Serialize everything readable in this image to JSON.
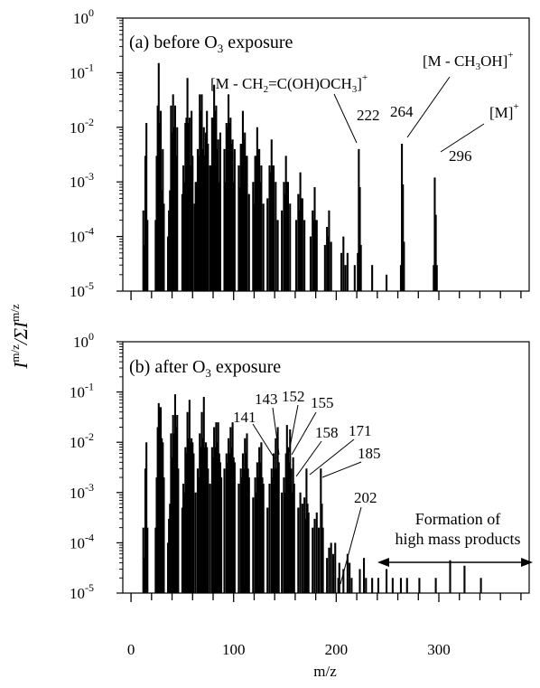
{
  "figure": {
    "ylabel_main": "I",
    "ylabel_sup1": "m/z",
    "ylabel_mid": "/ΣI",
    "ylabel_sup2": "m/z",
    "xlabel": "m/z",
    "x_ticks": [
      "0",
      "100",
      "200",
      "300"
    ],
    "y_ticks": [
      {
        "base": "10",
        "exp": "0"
      },
      {
        "base": "10",
        "exp": "-1"
      },
      {
        "base": "10",
        "exp": "-2"
      },
      {
        "base": "10",
        "exp": "-3"
      },
      {
        "base": "10",
        "exp": "-4"
      },
      {
        "base": "10",
        "exp": "-5"
      }
    ]
  },
  "chart_data": [
    {
      "type": "bar",
      "panel": "a",
      "title": "(a) before O3 exposure",
      "y_scale": "log",
      "ylim": [
        1e-05,
        1
      ],
      "xlim": [
        -8,
        388
      ],
      "peaks": [
        [
          12,
          0.0003
        ],
        [
          13,
          7e-05
        ],
        [
          14,
          0.003
        ],
        [
          15,
          0.012
        ],
        [
          16,
          0.0002
        ],
        [
          24,
          0.0002
        ],
        [
          25,
          0.003
        ],
        [
          26,
          0.025
        ],
        [
          27,
          0.15
        ],
        [
          28,
          0.012
        ],
        [
          29,
          0.02
        ],
        [
          30,
          0.0007
        ],
        [
          31,
          0.004
        ],
        [
          32,
          0.0004
        ],
        [
          36,
          0.0001
        ],
        [
          37,
          0.0003
        ],
        [
          38,
          0.0007
        ],
        [
          39,
          0.025
        ],
        [
          40,
          0.008
        ],
        [
          41,
          0.04
        ],
        [
          42,
          0.01
        ],
        [
          43,
          0.025
        ],
        [
          44,
          0.003
        ],
        [
          45,
          0.01
        ],
        [
          50,
          0.0006
        ],
        [
          51,
          0.002
        ],
        [
          52,
          0.001
        ],
        [
          53,
          0.012
        ],
        [
          54,
          0.015
        ],
        [
          55,
          0.08
        ],
        [
          56,
          0.012
        ],
        [
          57,
          0.015
        ],
        [
          58,
          0.002
        ],
        [
          59,
          0.02
        ],
        [
          60,
          0.003
        ],
        [
          62,
          0.0004
        ],
        [
          63,
          0.001
        ],
        [
          64,
          0.001
        ],
        [
          65,
          0.004
        ],
        [
          66,
          0.003
        ],
        [
          67,
          0.04
        ],
        [
          68,
          0.02
        ],
        [
          69,
          0.04
        ],
        [
          70,
          0.004
        ],
        [
          71,
          0.01
        ],
        [
          72,
          0.003
        ],
        [
          73,
          0.008
        ],
        [
          74,
          0.02
        ],
        [
          75,
          0.005
        ],
        [
          77,
          0.002
        ],
        [
          78,
          0.002
        ],
        [
          79,
          0.015
        ],
        [
          80,
          0.015
        ],
        [
          81,
          0.06
        ],
        [
          82,
          0.02
        ],
        [
          83,
          0.025
        ],
        [
          84,
          0.004
        ],
        [
          85,
          0.006
        ],
        [
          86,
          0.001
        ],
        [
          87,
          0.008
        ],
        [
          91,
          0.004
        ],
        [
          92,
          0.001
        ],
        [
          93,
          0.012
        ],
        [
          94,
          0.01
        ],
        [
          95,
          0.04
        ],
        [
          96,
          0.012
        ],
        [
          97,
          0.015
        ],
        [
          98,
          0.005
        ],
        [
          99,
          0.006
        ],
        [
          100,
          0.001
        ],
        [
          101,
          0.004
        ],
        [
          105,
          0.002
        ],
        [
          106,
          0.0008
        ],
        [
          107,
          0.005
        ],
        [
          108,
          0.005
        ],
        [
          109,
          0.02
        ],
        [
          110,
          0.006
        ],
        [
          111,
          0.008
        ],
        [
          112,
          0.003
        ],
        [
          113,
          0.003
        ],
        [
          115,
          0.0006
        ],
        [
          119,
          0.001
        ],
        [
          120,
          0.0004
        ],
        [
          121,
          0.003
        ],
        [
          122,
          0.003
        ],
        [
          123,
          0.01
        ],
        [
          124,
          0.004
        ],
        [
          125,
          0.004
        ],
        [
          126,
          0.001
        ],
        [
          127,
          0.002
        ],
        [
          129,
          0.0004
        ],
        [
          133,
          0.0005
        ],
        [
          135,
          0.002
        ],
        [
          136,
          0.0015
        ],
        [
          137,
          0.006
        ],
        [
          138,
          0.002
        ],
        [
          139,
          0.002
        ],
        [
          141,
          0.001
        ],
        [
          143,
          0.0002
        ],
        [
          147,
          0.0003
        ],
        [
          149,
          0.001
        ],
        [
          150,
          0.0006
        ],
        [
          151,
          0.003
        ],
        [
          152,
          0.001
        ],
        [
          153,
          0.001
        ],
        [
          155,
          0.0004
        ],
        [
          161,
          0.0002
        ],
        [
          163,
          0.0006
        ],
        [
          164,
          0.0003
        ],
        [
          165,
          0.0015
        ],
        [
          166,
          0.0005
        ],
        [
          167,
          0.0005
        ],
        [
          169,
          0.0002
        ],
        [
          175,
          0.0001
        ],
        [
          177,
          0.0003
        ],
        [
          178,
          0.0002
        ],
        [
          179,
          0.0008
        ],
        [
          180,
          0.0002
        ],
        [
          181,
          0.0002
        ],
        [
          189,
          7e-05
        ],
        [
          191,
          0.00015
        ],
        [
          192,
          0.0001
        ],
        [
          193,
          0.0003
        ],
        [
          195,
          8e-05
        ],
        [
          205,
          5e-05
        ],
        [
          207,
          0.0001
        ],
        [
          209,
          3e-05
        ],
        [
          211,
          5e-05
        ],
        [
          218,
          3e-05
        ],
        [
          221,
          5e-05
        ],
        [
          222,
          0.004
        ],
        [
          223,
          0.0008
        ],
        [
          224,
          7e-05
        ],
        [
          235,
          3e-05
        ],
        [
          249,
          2e-05
        ],
        [
          263,
          3e-05
        ],
        [
          264,
          0.005
        ],
        [
          265,
          0.0009
        ],
        [
          266,
          8e-05
        ],
        [
          295,
          3e-05
        ],
        [
          296,
          0.0012
        ],
        [
          297,
          0.00025
        ],
        [
          298,
          3e-05
        ]
      ],
      "annotations": [
        {
          "label": "222",
          "mz": 222
        },
        {
          "label": "264",
          "mz": 264
        },
        {
          "label": "296",
          "mz": 296
        },
        {
          "label": "[M - CH2=C(OH)OCH3]+"
        },
        {
          "label": "[M - CH3OH]+"
        },
        {
          "label": "[M]+"
        }
      ]
    },
    {
      "type": "bar",
      "panel": "b",
      "title": "(b) after O3 exposure",
      "y_scale": "log",
      "ylim": [
        1e-05,
        1
      ],
      "xlim": [
        -8,
        388
      ],
      "peaks": [
        [
          12,
          0.0002
        ],
        [
          13,
          5e-05
        ],
        [
          14,
          0.003
        ],
        [
          15,
          0.01
        ],
        [
          16,
          0.0002
        ],
        [
          24,
          0.0002
        ],
        [
          25,
          0.002
        ],
        [
          26,
          0.02
        ],
        [
          27,
          0.06
        ],
        [
          28,
          0.05
        ],
        [
          29,
          0.05
        ],
        [
          30,
          0.012
        ],
        [
          31,
          0.01
        ],
        [
          32,
          0.002
        ],
        [
          36,
          0.0001
        ],
        [
          37,
          0.0003
        ],
        [
          38,
          0.0006
        ],
        [
          39,
          0.015
        ],
        [
          40,
          0.005
        ],
        [
          41,
          0.035
        ],
        [
          42,
          0.015
        ],
        [
          43,
          0.09
        ],
        [
          44,
          0.02
        ],
        [
          45,
          0.035
        ],
        [
          46,
          0.003
        ],
        [
          50,
          0.0005
        ],
        [
          51,
          0.0015
        ],
        [
          52,
          0.001
        ],
        [
          53,
          0.008
        ],
        [
          54,
          0.006
        ],
        [
          55,
          0.04
        ],
        [
          56,
          0.012
        ],
        [
          57,
          0.07
        ],
        [
          58,
          0.01
        ],
        [
          59,
          0.012
        ],
        [
          60,
          0.01
        ],
        [
          61,
          0.006
        ],
        [
          63,
          0.001
        ],
        [
          65,
          0.003
        ],
        [
          66,
          0.002
        ],
        [
          67,
          0.015
        ],
        [
          68,
          0.008
        ],
        [
          69,
          0.04
        ],
        [
          70,
          0.012
        ],
        [
          71,
          0.08
        ],
        [
          72,
          0.008
        ],
        [
          73,
          0.01
        ],
        [
          74,
          0.008
        ],
        [
          75,
          0.003
        ],
        [
          77,
          0.0015
        ],
        [
          79,
          0.008
        ],
        [
          80,
          0.005
        ],
        [
          81,
          0.02
        ],
        [
          82,
          0.008
        ],
        [
          83,
          0.025
        ],
        [
          84,
          0.01
        ],
        [
          85,
          0.025
        ],
        [
          86,
          0.006
        ],
        [
          87,
          0.004
        ],
        [
          88,
          0.002
        ],
        [
          91,
          0.003
        ],
        [
          93,
          0.006
        ],
        [
          94,
          0.004
        ],
        [
          95,
          0.012
        ],
        [
          96,
          0.006
        ],
        [
          97,
          0.02
        ],
        [
          98,
          0.008
        ],
        [
          99,
          0.025
        ],
        [
          100,
          0.005
        ],
        [
          101,
          0.004
        ],
        [
          105,
          0.0015
        ],
        [
          107,
          0.003
        ],
        [
          108,
          0.002
        ],
        [
          109,
          0.006
        ],
        [
          110,
          0.003
        ],
        [
          111,
          0.012
        ],
        [
          112,
          0.006
        ],
        [
          113,
          0.015
        ],
        [
          114,
          0.003
        ],
        [
          115,
          0.002
        ],
        [
          119,
          0.0008
        ],
        [
          121,
          0.002
        ],
        [
          122,
          0.001
        ],
        [
          123,
          0.004
        ],
        [
          124,
          0.002
        ],
        [
          125,
          0.008
        ],
        [
          126,
          0.004
        ],
        [
          127,
          0.01
        ],
        [
          128,
          0.002
        ],
        [
          129,
          0.0015
        ],
        [
          133,
          0.0005
        ],
        [
          135,
          0.0015
        ],
        [
          137,
          0.003
        ],
        [
          138,
          0.002
        ],
        [
          139,
          0.006
        ],
        [
          140,
          0.003
        ],
        [
          141,
          0.012
        ],
        [
          142,
          0.003
        ],
        [
          143,
          0.02
        ],
        [
          144,
          0.004
        ],
        [
          147,
          0.001
        ],
        [
          149,
          0.002
        ],
        [
          150,
          0.001
        ],
        [
          151,
          0.006
        ],
        [
          152,
          0.022
        ],
        [
          153,
          0.008
        ],
        [
          154,
          0.004
        ],
        [
          155,
          0.018
        ],
        [
          156,
          0.003
        ],
        [
          157,
          0.001
        ],
        [
          158,
          0.005
        ],
        [
          159,
          0.0015
        ],
        [
          163,
          0.0005
        ],
        [
          165,
          0.001
        ],
        [
          167,
          0.0006
        ],
        [
          169,
          0.0008
        ],
        [
          170,
          0.0003
        ],
        [
          171,
          0.003
        ],
        [
          172,
          0.0006
        ],
        [
          173,
          0.0004
        ],
        [
          177,
          0.0002
        ],
        [
          179,
          0.0003
        ],
        [
          181,
          0.0004
        ],
        [
          183,
          0.0002
        ],
        [
          185,
          0.003
        ],
        [
          186,
          0.0006
        ],
        [
          187,
          0.0002
        ],
        [
          191,
          5e-05
        ],
        [
          193,
          8e-05
        ],
        [
          195,
          0.0001
        ],
        [
          197,
          6e-05
        ],
        [
          199,
          0.0001
        ],
        [
          202,
          2e-05
        ],
        [
          203,
          4e-05
        ],
        [
          207,
          3e-05
        ],
        [
          211,
          6e-05
        ],
        [
          213,
          4e-05
        ],
        [
          215,
          2e-05
        ],
        [
          223,
          3e-05
        ],
        [
          227,
          5e-05
        ],
        [
          229,
          2e-05
        ],
        [
          235,
          2e-05
        ],
        [
          241,
          2e-05
        ],
        [
          249,
          3e-05
        ],
        [
          255,
          2e-05
        ],
        [
          263,
          2e-05
        ],
        [
          269,
          2e-05
        ],
        [
          281,
          2e-05
        ],
        [
          297,
          2e-05
        ],
        [
          311,
          4.5e-05
        ],
        [
          325,
          3.5e-05
        ],
        [
          341,
          2e-05
        ]
      ],
      "annotations": [
        {
          "label": "141",
          "mz": 141
        },
        {
          "label": "143",
          "mz": 143
        },
        {
          "label": "152",
          "mz": 152
        },
        {
          "label": "155",
          "mz": 155
        },
        {
          "label": "158",
          "mz": 158
        },
        {
          "label": "171",
          "mz": 171
        },
        {
          "label": "185",
          "mz": 185
        },
        {
          "label": "202",
          "mz": 202
        },
        {
          "label": "Formation of"
        },
        {
          "label": "high mass products"
        }
      ]
    }
  ]
}
